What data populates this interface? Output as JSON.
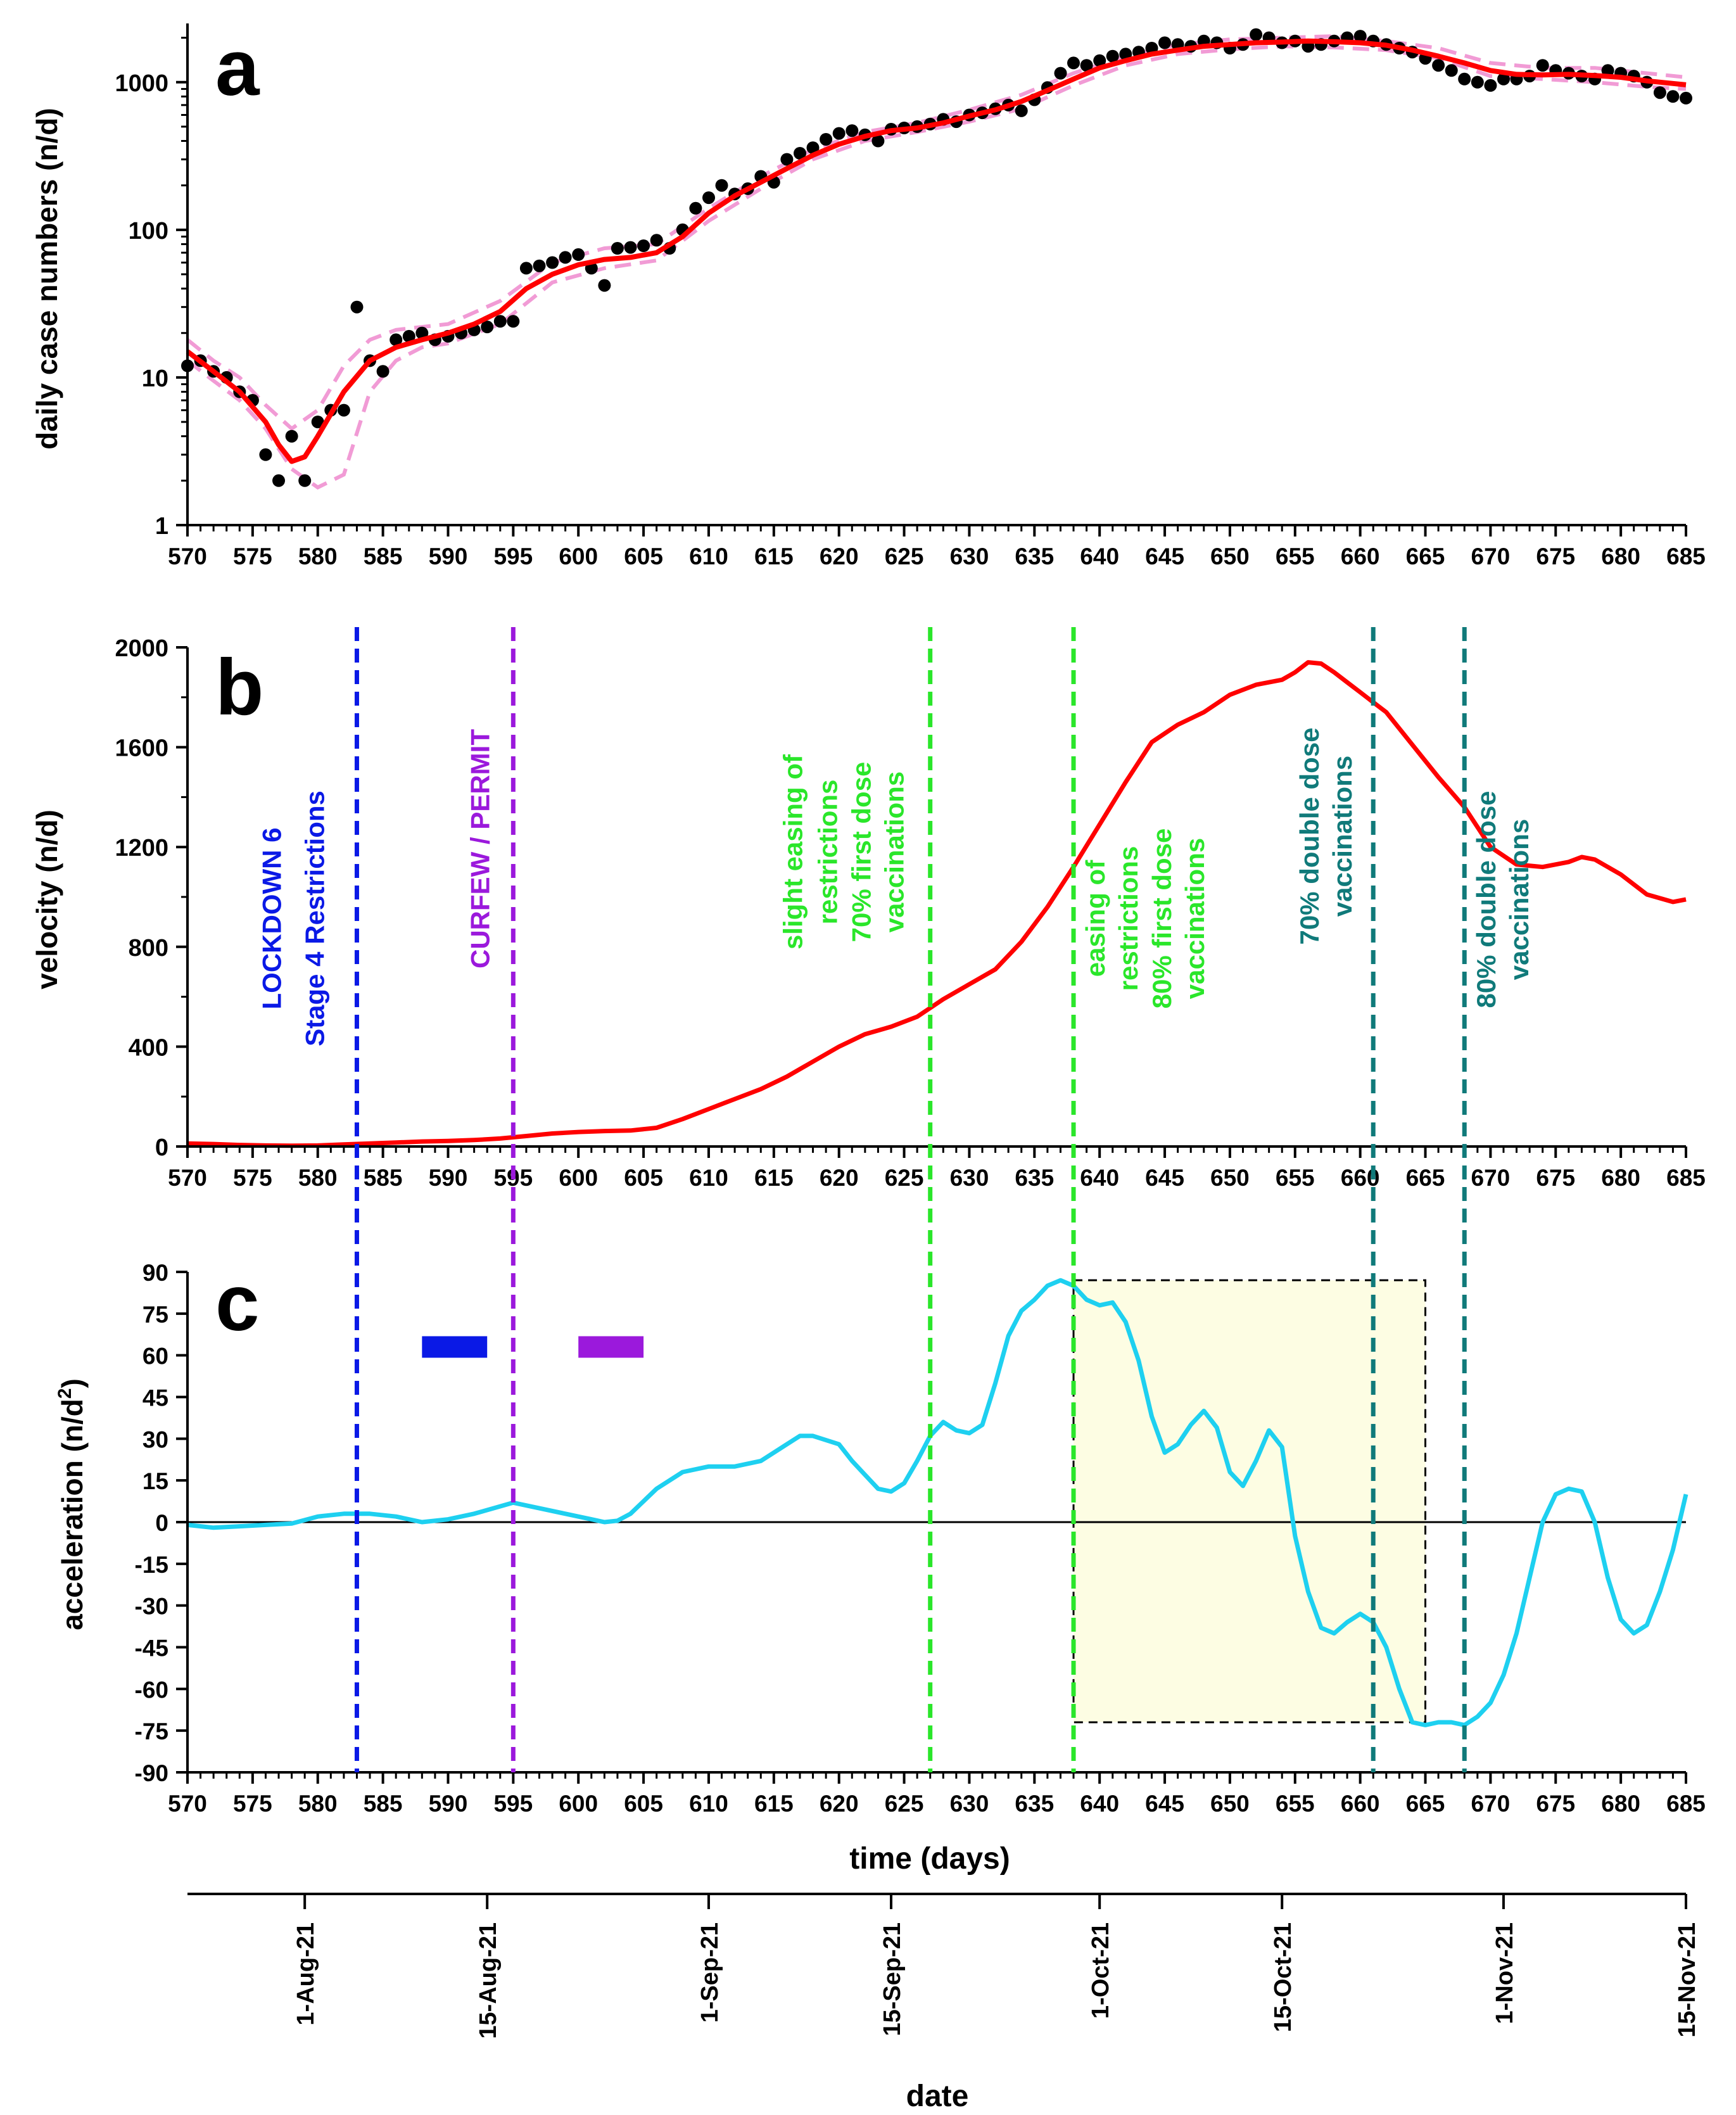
{
  "chart_data": [
    {
      "type": "scatter+line",
      "panel_label": "a",
      "ylabel": "daily case numbers (n/d)",
      "yscale": "log",
      "ylim": [
        1,
        2500
      ],
      "xlim": [
        570,
        685
      ],
      "x_ticks": [
        570,
        575,
        580,
        585,
        590,
        595,
        600,
        605,
        610,
        615,
        620,
        625,
        630,
        635,
        640,
        645,
        650,
        655,
        660,
        665,
        670,
        675,
        680,
        685
      ],
      "y_ticks": [
        1,
        10,
        100,
        1000
      ],
      "y_tick_labels": [
        "1",
        "10",
        "100",
        "1000"
      ],
      "series": [
        {
          "name": "daily cases",
          "style": "points",
          "color": "#000000",
          "x": [
            570,
            571,
            572,
            573,
            574,
            575,
            576,
            577,
            578,
            579,
            580,
            581,
            582,
            583,
            584,
            585,
            586,
            587,
            588,
            589,
            590,
            591,
            592,
            593,
            594,
            595,
            596,
            597,
            598,
            599,
            600,
            601,
            602,
            603,
            604,
            605,
            606,
            607,
            608,
            609,
            610,
            611,
            612,
            613,
            614,
            615,
            616,
            617,
            618,
            619,
            620,
            621,
            622,
            623,
            624,
            625,
            626,
            627,
            628,
            629,
            630,
            631,
            632,
            633,
            634,
            635,
            636,
            637,
            638,
            639,
            640,
            641,
            642,
            643,
            644,
            645,
            646,
            647,
            648,
            649,
            650,
            651,
            652,
            653,
            654,
            655,
            656,
            657,
            658,
            659,
            660,
            661,
            662,
            663,
            664,
            665,
            666,
            667,
            668,
            669,
            670,
            671,
            672,
            673,
            674,
            675,
            676,
            677,
            678,
            679,
            680,
            681,
            682,
            683,
            684,
            685
          ],
          "values": [
            12,
            13,
            11,
            10,
            8,
            7,
            3,
            2,
            4,
            2,
            5,
            6,
            6,
            30,
            13,
            11,
            18,
            19,
            20,
            18,
            19,
            20,
            21,
            22,
            24,
            24,
            55,
            57,
            60,
            65,
            68,
            55,
            42,
            75,
            76,
            78,
            85,
            75,
            100,
            140,
            165,
            200,
            175,
            190,
            230,
            210,
            300,
            330,
            360,
            410,
            450,
            470,
            440,
            400,
            480,
            490,
            500,
            520,
            560,
            540,
            600,
            620,
            660,
            700,
            640,
            760,
            920,
            1150,
            1350,
            1300,
            1400,
            1500,
            1550,
            1600,
            1700,
            1850,
            1800,
            1750,
            1900,
            1850,
            1700,
            1800,
            2100,
            2000,
            1850,
            1900,
            1750,
            1800,
            1900,
            2000,
            2050,
            1900,
            1800,
            1700,
            1600,
            1450,
            1300,
            1200,
            1050,
            1000,
            950,
            1050,
            1050,
            1100,
            1300,
            1200,
            1150,
            1100,
            1050,
            1200,
            1150,
            1100,
            1000,
            850,
            800,
            780
          ]
        },
        {
          "name": "smoothed fit",
          "style": "line",
          "color": "#ff0000",
          "x": [
            570,
            572,
            574,
            576,
            577,
            578,
            579,
            580,
            582,
            584,
            586,
            588,
            590,
            592,
            594,
            596,
            598,
            600,
            602,
            604,
            606,
            608,
            610,
            612,
            614,
            616,
            618,
            620,
            622,
            624,
            626,
            628,
            630,
            632,
            634,
            636,
            638,
            640,
            642,
            644,
            646,
            648,
            650,
            652,
            654,
            656,
            658,
            660,
            662,
            664,
            666,
            668,
            670,
            672,
            674,
            676,
            678,
            680,
            682,
            684,
            685
          ],
          "values": [
            15,
            11,
            8,
            5,
            3.5,
            2.7,
            2.9,
            4,
            8,
            13,
            16,
            18,
            20,
            23,
            28,
            40,
            50,
            58,
            63,
            65,
            70,
            90,
            130,
            170,
            210,
            260,
            320,
            380,
            430,
            470,
            490,
            530,
            590,
            650,
            740,
            880,
            1050,
            1250,
            1400,
            1550,
            1650,
            1750,
            1800,
            1850,
            1870,
            1900,
            1880,
            1850,
            1780,
            1650,
            1500,
            1350,
            1200,
            1130,
            1120,
            1130,
            1110,
            1080,
            1020,
            980,
            960
          ]
        },
        {
          "name": "confidence band upper",
          "style": "dashed",
          "color": "#f19bd5",
          "x": [
            570,
            572,
            574,
            576,
            578,
            580,
            582,
            584,
            586,
            588,
            590,
            594,
            598,
            602,
            606,
            610,
            614,
            618,
            622,
            626,
            630,
            634,
            638,
            642,
            646,
            650,
            654,
            658,
            662,
            666,
            670,
            674,
            678,
            682,
            685
          ],
          "values": [
            18,
            13,
            10,
            6.5,
            4.5,
            6,
            12,
            18,
            21,
            22,
            23,
            33,
            60,
            75,
            80,
            140,
            230,
            350,
            460,
            530,
            650,
            820,
            1150,
            1500,
            1800,
            1950,
            2000,
            2050,
            1900,
            1700,
            1350,
            1250,
            1250,
            1150,
            1080
          ]
        },
        {
          "name": "confidence band lower",
          "style": "dashed",
          "color": "#f19bd5",
          "x": [
            570,
            572,
            574,
            576,
            578,
            580,
            582,
            584,
            586,
            588,
            590,
            594,
            598,
            602,
            606,
            610,
            614,
            618,
            622,
            626,
            630,
            634,
            638,
            642,
            646,
            650,
            654,
            658,
            662,
            666,
            670,
            674,
            678,
            682,
            685
          ],
          "values": [
            13,
            9.5,
            7,
            4.5,
            2.4,
            1.8,
            2.2,
            8,
            13,
            16,
            17,
            23,
            44,
            55,
            62,
            115,
            190,
            300,
            400,
            460,
            540,
            660,
            950,
            1300,
            1550,
            1670,
            1750,
            1720,
            1650,
            1450,
            1100,
            1050,
            1000,
            930,
            900
          ]
        }
      ]
    },
    {
      "type": "line",
      "panel_label": "b",
      "ylabel": "velocity (n/d)",
      "ylim": [
        0,
        2000
      ],
      "xlim": [
        570,
        685
      ],
      "x_ticks": [
        570,
        575,
        580,
        585,
        590,
        595,
        600,
        605,
        610,
        615,
        620,
        625,
        630,
        635,
        640,
        645,
        650,
        655,
        660,
        665,
        670,
        675,
        680,
        685
      ],
      "y_ticks": [
        0,
        400,
        800,
        1200,
        1600,
        2000
      ],
      "series": [
        {
          "name": "velocity",
          "color": "#ff0000",
          "x": [
            570,
            572,
            574,
            576,
            578,
            580,
            582,
            584,
            586,
            588,
            590,
            592,
            594,
            596,
            598,
            600,
            602,
            604,
            606,
            608,
            610,
            612,
            614,
            616,
            618,
            620,
            622,
            624,
            626,
            628,
            630,
            632,
            634,
            636,
            638,
            640,
            642,
            644,
            646,
            648,
            650,
            652,
            654,
            655,
            656,
            657,
            658,
            659,
            660,
            661,
            662,
            664,
            666,
            668,
            670,
            672,
            674,
            676,
            677,
            678,
            680,
            682,
            684,
            685
          ],
          "values": [
            12,
            10,
            6,
            4,
            3,
            4,
            8,
            12,
            16,
            20,
            22,
            26,
            32,
            42,
            52,
            58,
            62,
            64,
            75,
            110,
            150,
            190,
            230,
            280,
            340,
            400,
            450,
            480,
            520,
            590,
            650,
            710,
            820,
            960,
            1120,
            1290,
            1460,
            1620,
            1690,
            1740,
            1810,
            1850,
            1870,
            1900,
            1940,
            1935,
            1900,
            1860,
            1820,
            1780,
            1740,
            1610,
            1480,
            1360,
            1200,
            1130,
            1120,
            1140,
            1160,
            1150,
            1090,
            1010,
            980,
            990
          ]
        }
      ],
      "annotations": [
        {
          "day": 583,
          "color": "#0a19e6",
          "label_lines": [
            "LOCKDOWN 6",
            "Stage 4 Restrictions"
          ]
        },
        {
          "day": 595,
          "color": "#9b19dc",
          "label_lines": [
            "CURFEW / PERMIT"
          ]
        },
        {
          "day": 627,
          "color": "#2ae62a",
          "label_lines": [
            "slight easing of",
            "restrictions",
            "70% first dose",
            "vaccinations"
          ]
        },
        {
          "day": 638,
          "color": "#2ae62a",
          "label_lines": [
            "easing of",
            "restrictions",
            "80% first dose",
            "vaccinations"
          ]
        },
        {
          "day": 661,
          "color": "#107a7a",
          "label_lines": [
            "70% double dose",
            "vaccinations"
          ]
        },
        {
          "day": 668,
          "color": "#107a7a",
          "label_lines": [
            "80% double dose",
            "vaccinations"
          ]
        }
      ]
    },
    {
      "type": "line",
      "panel_label": "c",
      "ylabel": "acceleration (n/d",
      "ylabel_sup": "2",
      "ylabel_close": ")",
      "xlabel": "time (days)",
      "ylim": [
        -90,
        90
      ],
      "xlim": [
        570,
        685
      ],
      "x_ticks": [
        570,
        575,
        580,
        585,
        590,
        595,
        600,
        605,
        610,
        615,
        620,
        625,
        630,
        635,
        640,
        645,
        650,
        655,
        660,
        665,
        670,
        675,
        680,
        685
      ],
      "y_ticks": [
        -90,
        -75,
        -60,
        -45,
        -30,
        -15,
        0,
        15,
        30,
        45,
        60,
        75,
        90
      ],
      "series": [
        {
          "name": "acceleration",
          "color": "#1ed0f0",
          "x": [
            570,
            572,
            574,
            576,
            578,
            580,
            582,
            584,
            586,
            588,
            590,
            592,
            595,
            597,
            599,
            601,
            602,
            603,
            604,
            606,
            608,
            610,
            612,
            614,
            616,
            617,
            618,
            620,
            621,
            622,
            623,
            624,
            625,
            626,
            627,
            628,
            629,
            630,
            631,
            632,
            633,
            634,
            635,
            636,
            637,
            638,
            639,
            640,
            641,
            642,
            643,
            644,
            645,
            646,
            647,
            648,
            649,
            650,
            651,
            652,
            653,
            654,
            655,
            656,
            657,
            658,
            659,
            660,
            661,
            662,
            663,
            664,
            665,
            666,
            667,
            668,
            669,
            670,
            671,
            672,
            673,
            674,
            675,
            676,
            677,
            678,
            679,
            680,
            681,
            682,
            683,
            684,
            685
          ],
          "values": [
            -1,
            -2,
            -1.5,
            -1,
            -0.5,
            2,
            3,
            3,
            2,
            0,
            1,
            3,
            7,
            5,
            3,
            1,
            0,
            0.5,
            3,
            12,
            18,
            20,
            20,
            22,
            28,
            31,
            31,
            28,
            22,
            17,
            12,
            11,
            14,
            22,
            31,
            36,
            33,
            32,
            35,
            50,
            67,
            76,
            80,
            85,
            87,
            85,
            80,
            78,
            79,
            72,
            58,
            38,
            25,
            28,
            35,
            40,
            34,
            18,
            13,
            22,
            33,
            27,
            -5,
            -25,
            -38,
            -40,
            -36,
            -33,
            -36,
            -45,
            -60,
            -72,
            -73,
            -72,
            -72,
            -73,
            -70,
            -65,
            -55,
            -40,
            -20,
            0,
            10,
            12,
            11,
            0,
            -20,
            -35,
            -40,
            -37,
            -25,
            -10,
            10
          ]
        }
      ],
      "reference_line": 0,
      "bars": [
        {
          "color": "#0a19e6",
          "from_day": 588,
          "to_day": 593,
          "level": 63
        },
        {
          "color": "#9b19dc",
          "from_day": 600,
          "to_day": 605,
          "level": 63
        }
      ],
      "highlight_box": {
        "from_day": 638,
        "to_day": 665,
        "from_value": -72,
        "to_value": 87,
        "color": "#fdfde3"
      }
    }
  ],
  "date_axis": {
    "label": "date",
    "ticks": [
      {
        "day": 579,
        "label": "1-Aug-21"
      },
      {
        "day": 593,
        "label": "15-Aug-21"
      },
      {
        "day": 610,
        "label": "1-Sep-21"
      },
      {
        "day": 624,
        "label": "15-Sep-21"
      },
      {
        "day": 640,
        "label": "1-Oct-21"
      },
      {
        "day": 654,
        "label": "15-Oct-21"
      },
      {
        "day": 671,
        "label": "1-Nov-21"
      },
      {
        "day": 685,
        "label": "15-Nov-21"
      }
    ],
    "range": [
      570,
      685
    ]
  }
}
